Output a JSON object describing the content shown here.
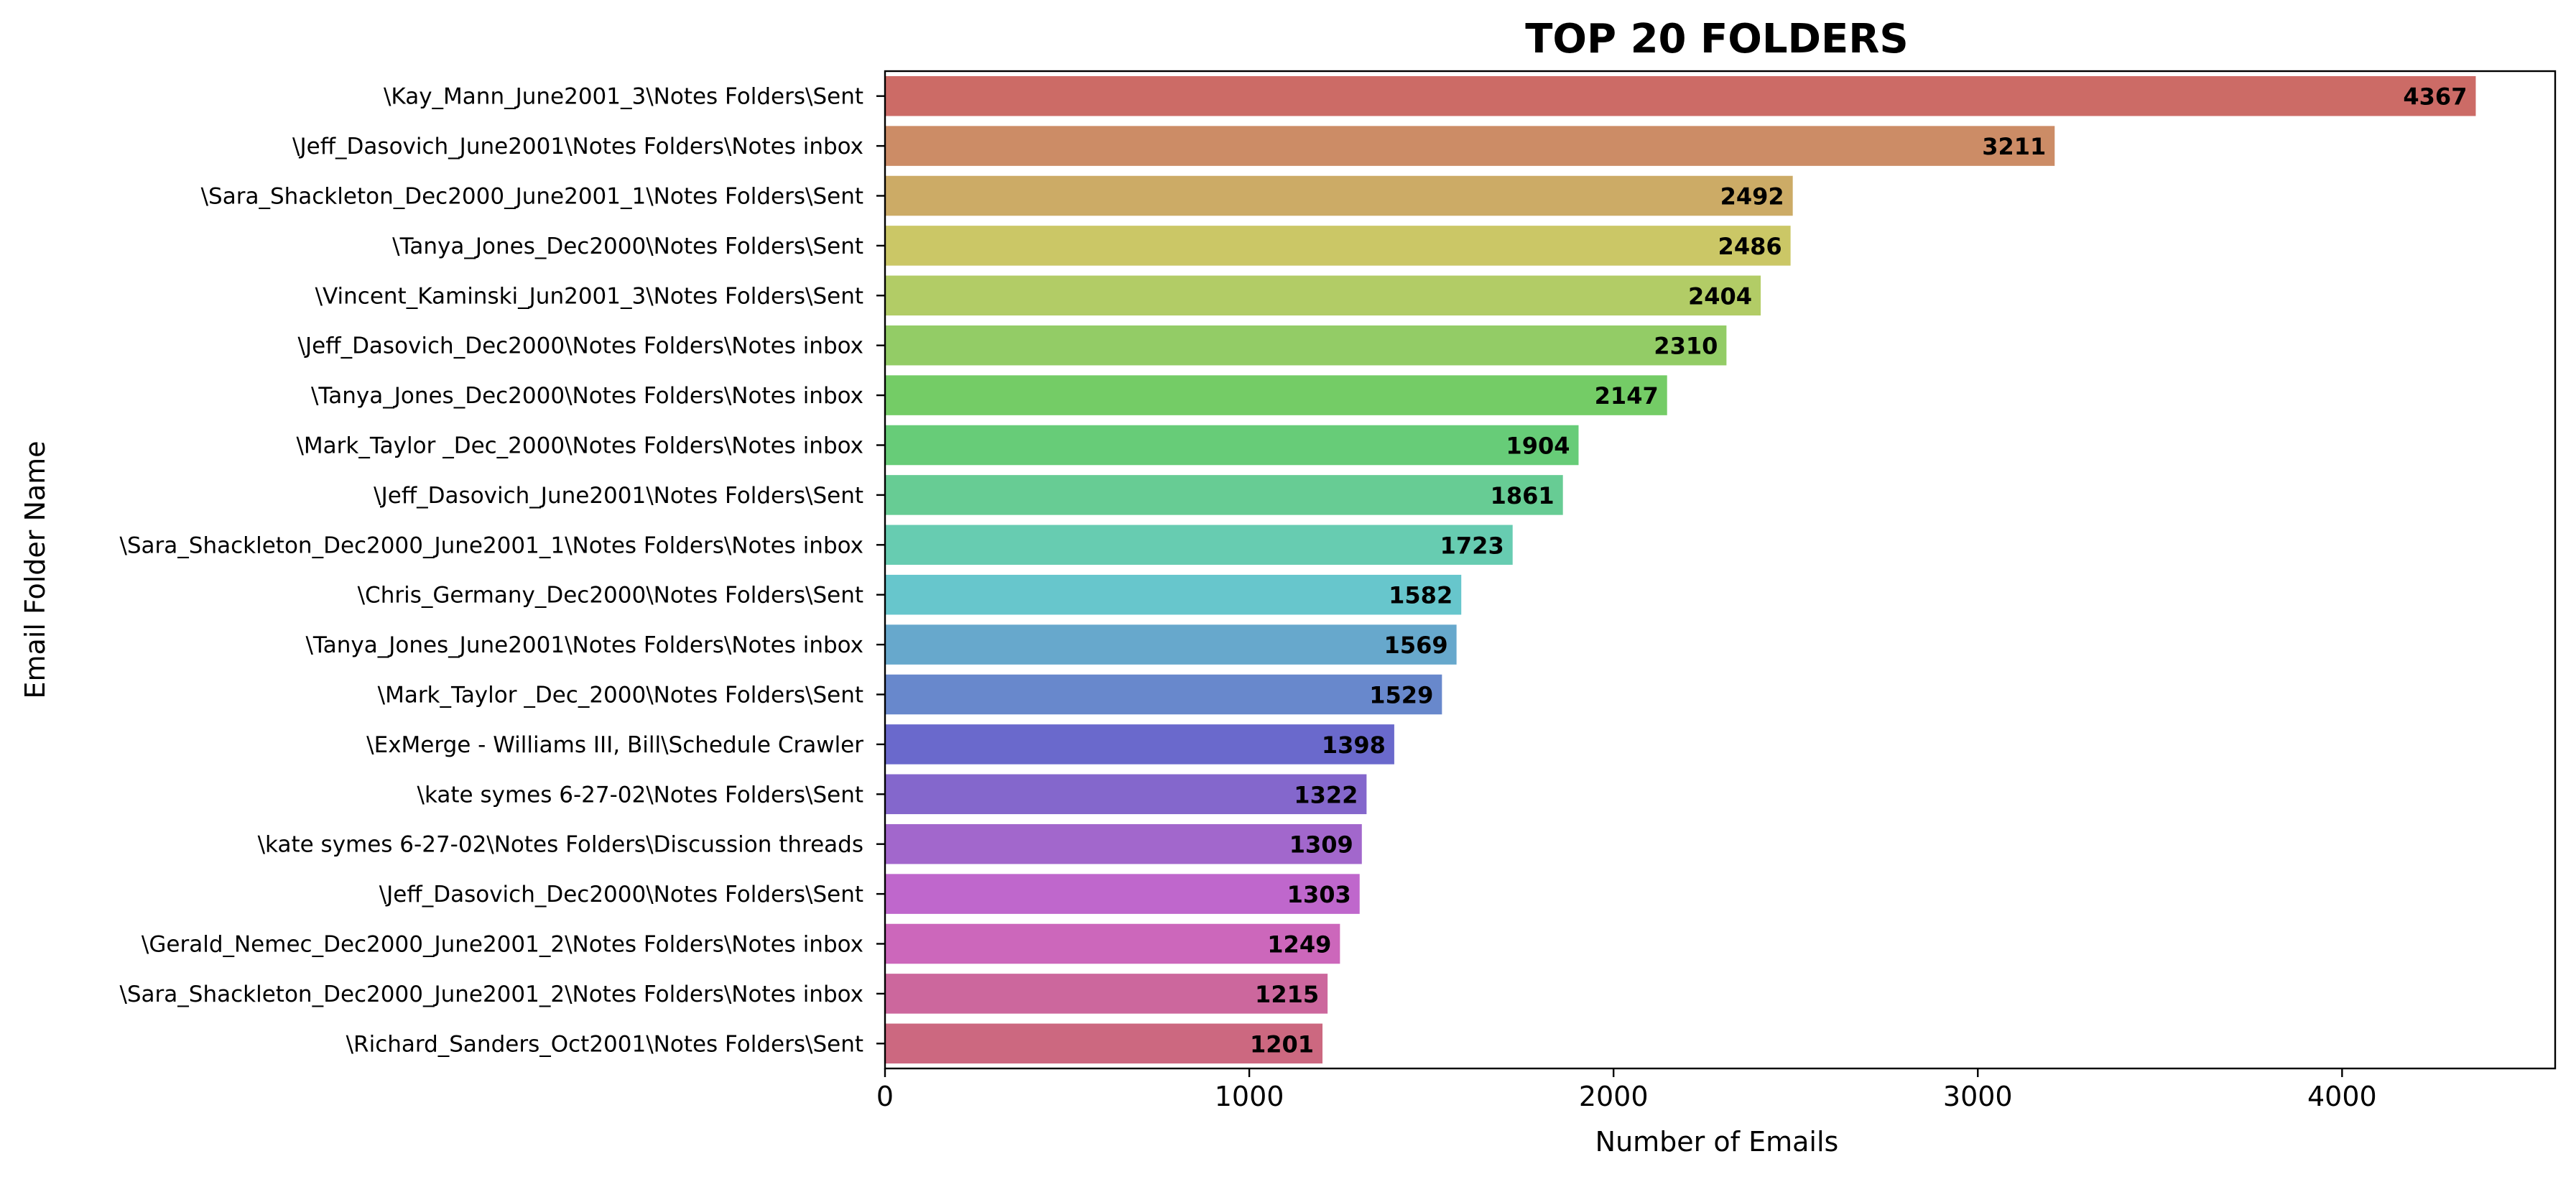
{
  "chart_data": {
    "type": "bar",
    "orientation": "horizontal",
    "title": "TOP 20 FOLDERS",
    "xlabel": "Number of Emails",
    "ylabel": "Email Folder Name",
    "xlim": [
      0,
      4585
    ],
    "xticks": [
      0,
      1000,
      2000,
      3000,
      4000
    ],
    "xtick_labels": [
      "0",
      "1000",
      "2000",
      "3000",
      "4000"
    ],
    "grid": false,
    "legend": "none",
    "categories": [
      "\\Kay_Mann_June2001_3\\Notes Folders\\Sent",
      "\\Jeff_Dasovich_June2001\\Notes Folders\\Notes inbox",
      "\\Sara_Shackleton_Dec2000_June2001_1\\Notes Folders\\Sent",
      "\\Tanya_Jones_Dec2000\\Notes Folders\\Sent",
      "\\Vincent_Kaminski_Jun2001_3\\Notes Folders\\Sent",
      "\\Jeff_Dasovich_Dec2000\\Notes Folders\\Notes inbox",
      "\\Tanya_Jones_Dec2000\\Notes Folders\\Notes inbox",
      "\\Mark_Taylor _Dec_2000\\Notes Folders\\Notes inbox",
      "\\Jeff_Dasovich_June2001\\Notes Folders\\Sent",
      "\\Sara_Shackleton_Dec2000_June2001_1\\Notes Folders\\Notes inbox",
      "\\Chris_Germany_Dec2000\\Notes Folders\\Sent",
      "\\Tanya_Jones_June2001\\Notes Folders\\Notes inbox",
      "\\Mark_Taylor _Dec_2000\\Notes Folders\\Sent",
      "\\ExMerge - Williams III, Bill\\Schedule Crawler",
      "\\kate symes 6-27-02\\Notes Folders\\Sent",
      "\\kate symes 6-27-02\\Notes Folders\\Discussion threads",
      "\\Jeff_Dasovich_Dec2000\\Notes Folders\\Sent",
      "\\Gerald_Nemec_Dec2000_June2001_2\\Notes Folders\\Notes inbox",
      "\\Sara_Shackleton_Dec2000_June2001_2\\Notes Folders\\Notes inbox",
      "\\Richard_Sanders_Oct2001\\Notes Folders\\Sent"
    ],
    "values": [
      4367,
      3211,
      2492,
      2486,
      2404,
      2310,
      2147,
      1904,
      1861,
      1723,
      1582,
      1569,
      1529,
      1398,
      1322,
      1309,
      1303,
      1249,
      1215,
      1201
    ],
    "data_labels": [
      "4367",
      "3211",
      "2492",
      "2486",
      "2404",
      "2310",
      "2147",
      "1904",
      "1861",
      "1723",
      "1582",
      "1569",
      "1529",
      "1398",
      "1322",
      "1309",
      "1303",
      "1249",
      "1215",
      "1201"
    ],
    "colors": [
      "#cc6b66",
      "#cc8c66",
      "#ccab66",
      "#cbc766",
      "#b2cc66",
      "#93cc66",
      "#74cc66",
      "#67cc78",
      "#67cc94",
      "#67ccb1",
      "#67c6cc",
      "#67a8cc",
      "#6888cc",
      "#6a69cc",
      "#8467cc",
      "#a267cc",
      "#bf67cc",
      "#cc67bb",
      "#cc679d",
      "#cc6880"
    ]
  }
}
